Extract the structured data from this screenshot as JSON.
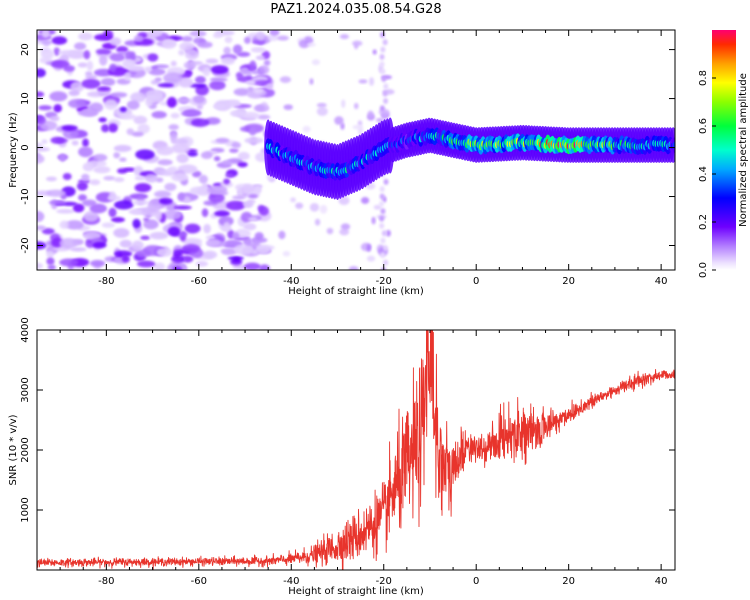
{
  "title": "PAZ1.2024.035.08.54.G28",
  "chart_data": [
    {
      "type": "heatmap",
      "title": "PAZ1.2024.035.08.54.G28",
      "xlabel": "Height of straight line (km)",
      "ylabel": "Frequency (Hz)",
      "xlim": [
        -95,
        43
      ],
      "ylim": [
        -25,
        24
      ],
      "xticks": [
        -80,
        -60,
        -40,
        -20,
        0,
        20,
        40
      ],
      "yticks": [
        -20,
        -10,
        0,
        10,
        20
      ],
      "colorbar": {
        "label": "Normalized spectral amplitude",
        "range": [
          0.0,
          1.0
        ],
        "ticks": [
          0.0,
          0.2,
          0.4,
          0.6,
          0.8
        ],
        "colormap": "gist_rainbow_r with transparent low end"
      },
      "ridge": {
        "description": "dominant spectral line (Hz) vs height",
        "x": [
          -45,
          -40,
          -35,
          -30,
          -25,
          -20,
          -15,
          -10,
          -5,
          0,
          10,
          20,
          30,
          43
        ],
        "y": [
          0,
          -2,
          -4,
          -5,
          -3,
          0,
          1.5,
          2.5,
          1.5,
          0.5,
          1,
          0.5,
          0.5,
          0.5
        ],
        "amplitude": [
          0.45,
          0.4,
          0.42,
          0.5,
          0.45,
          0.4,
          0.35,
          0.45,
          0.55,
          0.65,
          0.7,
          0.9,
          0.55,
          0.45
        ]
      },
      "grid": false
    },
    {
      "type": "line",
      "xlabel": "Height of straight line (km)",
      "ylabel": "SNR (10 * v/v)",
      "xlim": [
        -95,
        43
      ],
      "ylim": [
        0,
        4000
      ],
      "xticks": [
        -80,
        -60,
        -40,
        -20,
        0,
        20,
        40
      ],
      "yticks": [
        1000,
        2000,
        3000,
        4000
      ],
      "color": "#e8342c",
      "series": [
        {
          "x": [
            -95,
            -80,
            -60,
            -45,
            -40,
            -35,
            -30,
            -25,
            -20,
            -18,
            -15,
            -12,
            -10,
            -8,
            -6,
            -4,
            -2,
            0,
            2,
            5,
            8,
            10,
            12,
            15,
            18,
            20,
            25,
            30,
            35,
            40,
            43
          ],
          "y": [
            120,
            130,
            140,
            150,
            180,
            250,
            400,
            600,
            900,
            1300,
            1700,
            2200,
            3200,
            2000,
            1500,
            1800,
            2100,
            2000,
            2000,
            2200,
            2300,
            2350,
            2250,
            2400,
            2500,
            2600,
            2800,
            3000,
            3150,
            3250,
            3270
          ],
          "noise": [
            60,
            60,
            60,
            70,
            90,
            150,
            280,
            380,
            500,
            700,
            900,
            1100,
            1200,
            1100,
            800,
            400,
            250,
            200,
            200,
            350,
            400,
            400,
            350,
            250,
            200,
            150,
            120,
            100,
            100,
            90,
            80
          ]
        }
      ],
      "grid": false
    }
  ]
}
